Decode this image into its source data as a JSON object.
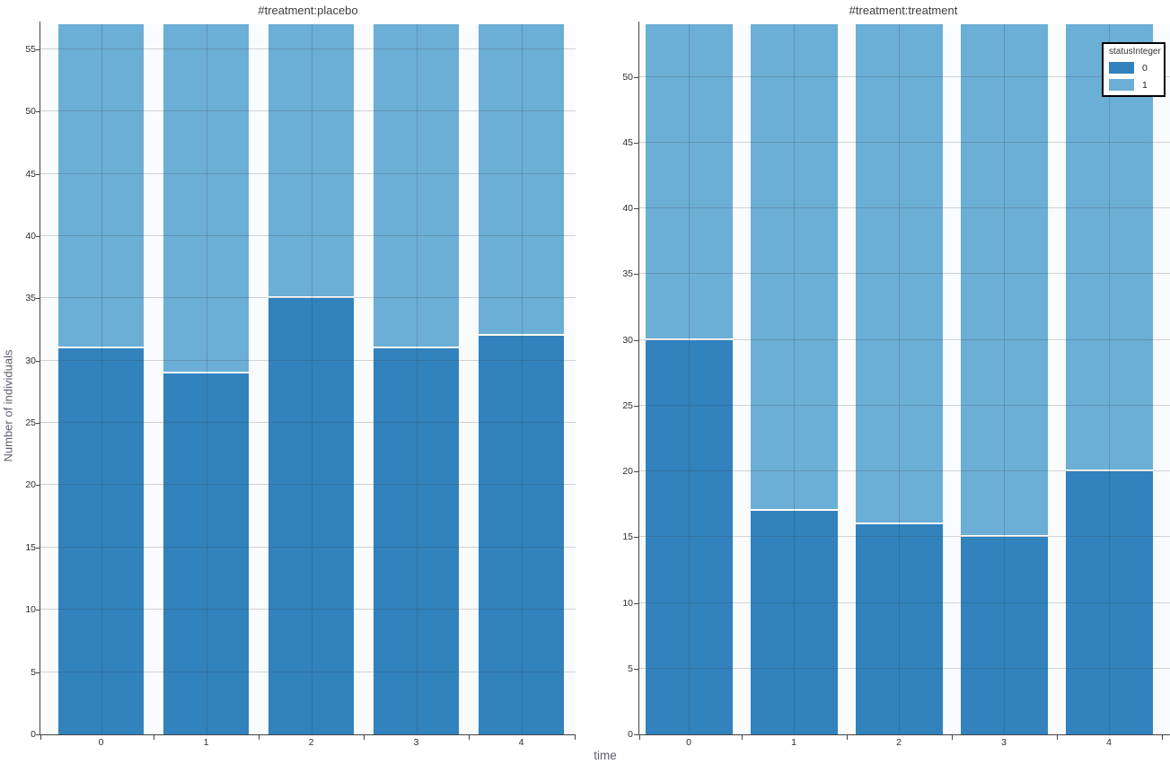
{
  "figure": {
    "y_title": "Number of individuals",
    "x_title": "time"
  },
  "legend": {
    "title": "statusInteger",
    "entries": [
      {
        "label": "0",
        "color": "#3182bd"
      },
      {
        "label": "1",
        "color": "#6baed6"
      }
    ]
  },
  "colors": {
    "status0": "#3182bd",
    "status1": "#6baed6",
    "grid": "rgba(60,60,60,0.22)",
    "axis": "#444444",
    "plot_background": "#fafbfd"
  },
  "chart_data": [
    {
      "type": "bar",
      "stacked": true,
      "title": "#treatment:placebo",
      "xlabel": "time",
      "ylabel": "Number of individuals",
      "categories": [
        "0",
        "1",
        "2",
        "3",
        "4"
      ],
      "series": [
        {
          "name": "0",
          "values": [
            31,
            29,
            35,
            31,
            32
          ]
        },
        {
          "name": "1",
          "values": [
            26,
            28,
            22,
            26,
            25
          ]
        }
      ],
      "stack_totals": [
        57,
        57,
        57,
        57,
        57
      ],
      "ylim": [
        0,
        57
      ],
      "ytick_step": 5,
      "yticks": [
        0,
        5,
        10,
        15,
        20,
        25,
        30,
        35,
        40,
        45,
        50,
        55
      ],
      "grid": true
    },
    {
      "type": "bar",
      "stacked": true,
      "title": "#treatment:treatment",
      "xlabel": "time",
      "ylabel": "Number of individuals",
      "categories": [
        "0",
        "1",
        "2",
        "3",
        "4"
      ],
      "series": [
        {
          "name": "0",
          "values": [
            30,
            17,
            16,
            15,
            20
          ]
        },
        {
          "name": "1",
          "values": [
            24,
            37,
            38,
            39,
            34
          ]
        }
      ],
      "stack_totals": [
        54,
        54,
        54,
        54,
        54
      ],
      "ylim": [
        0,
        54
      ],
      "ytick_step": 5,
      "yticks": [
        0,
        5,
        10,
        15,
        20,
        25,
        30,
        35,
        40,
        45,
        50
      ],
      "grid": true,
      "legend_position": "top-right"
    }
  ]
}
